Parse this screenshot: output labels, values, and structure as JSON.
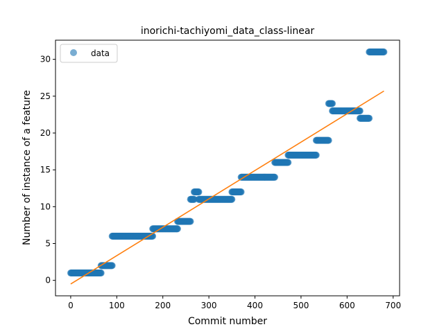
{
  "chart_data": {
    "type": "scatter",
    "title": "inorichi-tachiyomi_data_class-linear",
    "xlabel": "Commit number",
    "ylabel": "Number of instance of a feature",
    "xlim": [
      -33,
      714
    ],
    "ylim": [
      -2.1,
      32.6
    ],
    "xticks": [
      0,
      100,
      200,
      300,
      400,
      500,
      600,
      700
    ],
    "yticks": [
      0,
      5,
      10,
      15,
      20,
      25,
      30
    ],
    "grid": false,
    "legend": {
      "placement": "upper-left",
      "entries": [
        "data"
      ]
    },
    "colors": {
      "data": "#1f77b4",
      "fit": "#ff7f0e"
    },
    "series": [
      {
        "name": "data",
        "kind": "scatter",
        "segments": [
          {
            "x_start": 0,
            "x_end": 66,
            "y": 1
          },
          {
            "x_start": 66,
            "x_end": 90,
            "y": 2
          },
          {
            "x_start": 90,
            "x_end": 178,
            "y": 6
          },
          {
            "x_start": 178,
            "x_end": 232,
            "y": 7
          },
          {
            "x_start": 232,
            "x_end": 260,
            "y": 8
          },
          {
            "x_start": 260,
            "x_end": 268,
            "y": 11
          },
          {
            "x_start": 268,
            "x_end": 278,
            "y": 12
          },
          {
            "x_start": 278,
            "x_end": 350,
            "y": 11
          },
          {
            "x_start": 350,
            "x_end": 370,
            "y": 12
          },
          {
            "x_start": 370,
            "x_end": 443,
            "y": 14
          },
          {
            "x_start": 443,
            "x_end": 472,
            "y": 16
          },
          {
            "x_start": 472,
            "x_end": 533,
            "y": 17
          },
          {
            "x_start": 533,
            "x_end": 560,
            "y": 19
          },
          {
            "x_start": 560,
            "x_end": 568,
            "y": 24
          },
          {
            "x_start": 568,
            "x_end": 628,
            "y": 23
          },
          {
            "x_start": 628,
            "x_end": 648,
            "y": 22
          },
          {
            "x_start": 648,
            "x_end": 680,
            "y": 31
          }
        ]
      },
      {
        "name": "",
        "kind": "line",
        "points": [
          [
            0,
            -0.5
          ],
          [
            680,
            25.7
          ]
        ]
      }
    ]
  }
}
